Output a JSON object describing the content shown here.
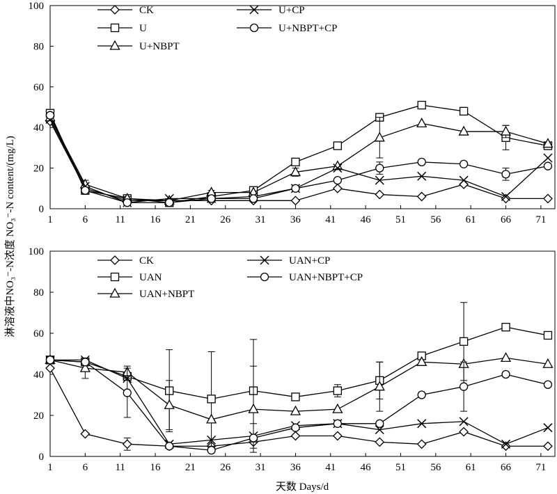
{
  "figure": {
    "ylabel": "淋溶液中NO₃⁻-N浓度 NO₃⁻-N content/(mg/L)",
    "xlabel": "天数 Days/d"
  },
  "chart_data": [
    {
      "type": "line",
      "panel": "top",
      "xticks": [
        "1",
        "6",
        "11",
        "16",
        "21",
        "26",
        "31",
        "36",
        "41",
        "46",
        "51",
        "56",
        "61",
        "66",
        "71"
      ],
      "yticks": [
        "0",
        "20",
        "40",
        "60",
        "80",
        "100"
      ],
      "xlim": [
        1,
        73
      ],
      "ylim": [
        0,
        100
      ],
      "grid": false,
      "legend": "top-left",
      "series": [
        {
          "name": "CK",
          "marker": "diamond",
          "x": [
            1,
            6,
            12,
            18,
            24,
            30,
            36,
            42,
            48,
            54,
            60,
            66,
            72
          ],
          "y": [
            43,
            10,
            4,
            4,
            4,
            4,
            4,
            10,
            7,
            6,
            12,
            5,
            5
          ],
          "err": [
            0,
            0,
            0,
            0,
            0,
            0,
            0,
            0,
            0,
            0,
            0,
            0,
            0
          ]
        },
        {
          "name": "U",
          "marker": "square",
          "x": [
            1,
            6,
            12,
            18,
            24,
            30,
            36,
            42,
            48,
            54,
            60,
            66,
            72
          ],
          "y": [
            47,
            9,
            5,
            3,
            6,
            9,
            23,
            31,
            45,
            51,
            48,
            35,
            31
          ],
          "err": [
            0,
            0,
            0,
            0,
            0,
            0,
            0,
            0,
            0,
            0,
            0,
            6,
            0
          ]
        },
        {
          "name": "U+NBPT",
          "marker": "triangle",
          "x": [
            1,
            6,
            12,
            18,
            24,
            30,
            36,
            42,
            48,
            54,
            60,
            66,
            72
          ],
          "y": [
            45,
            12,
            5,
            4,
            8,
            8,
            18,
            21,
            35,
            42,
            38,
            38,
            32
          ],
          "err": [
            0,
            2,
            1,
            1,
            1,
            0,
            2,
            0,
            10,
            0,
            0,
            3,
            0
          ]
        },
        {
          "name": "U+CP",
          "marker": "x",
          "x": [
            1,
            6,
            12,
            18,
            24,
            30,
            36,
            42,
            48,
            54,
            60,
            66,
            72
          ],
          "y": [
            44,
            11,
            3,
            5,
            5,
            6,
            10,
            20,
            14,
            16,
            14,
            6,
            25
          ],
          "err": [
            0,
            0,
            0,
            0,
            0,
            0,
            0,
            0,
            0,
            0,
            0,
            0,
            0
          ]
        },
        {
          "name": "U+NBPT+CP",
          "marker": "circle",
          "x": [
            1,
            6,
            12,
            18,
            24,
            30,
            36,
            42,
            48,
            54,
            60,
            66,
            72
          ],
          "y": [
            46,
            9,
            3,
            3,
            5,
            5,
            10,
            14,
            20,
            23,
            22,
            17,
            21
          ],
          "err": [
            0,
            0,
            0,
            0,
            0,
            0,
            0,
            0,
            3,
            0,
            0,
            3,
            0
          ]
        }
      ]
    },
    {
      "type": "line",
      "panel": "bottom",
      "xticks": [
        "1",
        "6",
        "11",
        "16",
        "21",
        "26",
        "31",
        "36",
        "41",
        "46",
        "51",
        "56",
        "61",
        "66",
        "71"
      ],
      "yticks": [
        "0",
        "20",
        "40",
        "60",
        "80",
        "100"
      ],
      "xlim": [
        1,
        73
      ],
      "ylim": [
        0,
        100
      ],
      "grid": false,
      "legend": "top-left",
      "series": [
        {
          "name": "CK",
          "marker": "diamond",
          "x": [
            1,
            6,
            12,
            18,
            24,
            30,
            36,
            42,
            48,
            54,
            60,
            66,
            72
          ],
          "y": [
            43,
            11,
            6,
            5,
            5,
            7,
            10,
            10,
            7,
            6,
            12,
            5,
            5
          ],
          "err": [
            0,
            0,
            3,
            0,
            0,
            0,
            0,
            0,
            0,
            0,
            0,
            0,
            0
          ]
        },
        {
          "name": "UAN",
          "marker": "square",
          "x": [
            1,
            6,
            12,
            18,
            24,
            30,
            36,
            42,
            48,
            54,
            60,
            66,
            72
          ],
          "y": [
            47,
            46,
            39,
            32,
            28,
            32,
            29,
            32,
            37,
            49,
            56,
            63,
            59
          ],
          "err": [
            0,
            0,
            0,
            20,
            23,
            25,
            0,
            3,
            9,
            0,
            19,
            0,
            0
          ]
        },
        {
          "name": "UAN+NBPT",
          "marker": "triangle",
          "x": [
            1,
            6,
            12,
            18,
            24,
            30,
            36,
            42,
            48,
            54,
            60,
            66,
            72
          ],
          "y": [
            47,
            43,
            41,
            25,
            18,
            23,
            22,
            23,
            34,
            46,
            45,
            48,
            45
          ],
          "err": [
            0,
            5,
            3,
            12,
            0,
            21,
            0,
            0,
            12,
            0,
            0,
            0,
            0
          ]
        },
        {
          "name": "UAN+CP",
          "marker": "x",
          "x": [
            1,
            6,
            12,
            18,
            24,
            30,
            36,
            42,
            48,
            54,
            60,
            66,
            72
          ],
          "y": [
            47,
            47,
            38,
            6,
            8,
            10,
            15,
            16,
            13,
            16,
            17,
            6,
            14
          ],
          "err": [
            0,
            0,
            0,
            0,
            0,
            6,
            0,
            0,
            0,
            0,
            0,
            0,
            0
          ]
        },
        {
          "name": "UAN+NBPT+CP",
          "marker": "circle",
          "x": [
            1,
            6,
            12,
            18,
            24,
            30,
            36,
            42,
            48,
            54,
            60,
            66,
            72
          ],
          "y": [
            47,
            46,
            31,
            5,
            3,
            9,
            14,
            16,
            16,
            30,
            34,
            40,
            35
          ],
          "err": [
            0,
            0,
            12,
            0,
            0,
            0,
            0,
            0,
            0,
            0,
            12,
            0,
            0
          ]
        }
      ]
    }
  ]
}
